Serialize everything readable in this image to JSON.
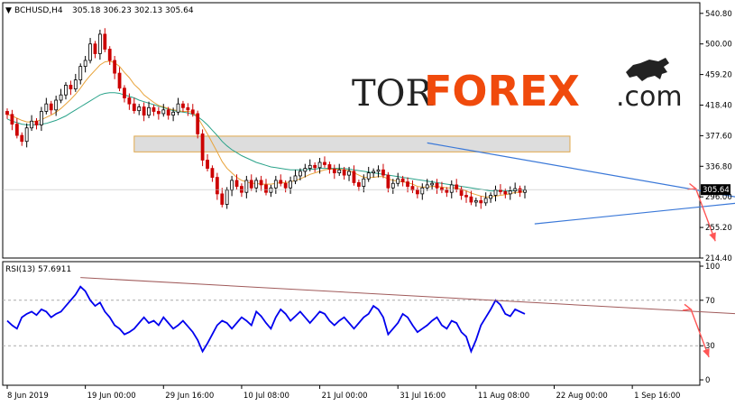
{
  "header": {
    "symbol": "BCHUSD,H4",
    "ohlc": "305.18 306.23 302.13 305.64",
    "rsi_label": "RSI(13) 57.6911"
  },
  "logo": {
    "part1": "TOR",
    "part2": "FOREX",
    "part3": ".com"
  },
  "colors": {
    "bull_candle": "#000000",
    "bear_candle": "#cc0000",
    "ma_fast": "#e8a33a",
    "ma_slow": "#2aa38a",
    "trend": "#3a78d8",
    "arrow": "#ff5555",
    "rsi_line": "#0000ee",
    "rsi_trend": "#a05a5a",
    "zone_fill": "#dddddd",
    "zone_border": "#e0a84c",
    "logo_orange": "#f04a0c"
  },
  "chart_data": [
    {
      "type": "candlestick",
      "title": "BCHUSD,H4",
      "ylim": [
        214.4,
        555
      ],
      "price_labels": [
        "540.80",
        "500.00",
        "459.20",
        "418.40",
        "377.60",
        "336.80",
        "296.00",
        "255.20",
        "214.40"
      ],
      "current_price": "305.64",
      "x_labels": [
        "8 Jun 2019",
        "19 Jun 00:00",
        "29 Jun 16:00",
        "10 Jul 08:00",
        "21 Jul 00:00",
        "31 Jul 16:00",
        "11 Aug 08:00",
        "22 Aug 00:00",
        "1 Sep 16:00"
      ],
      "x_label_index": [
        0,
        16,
        32,
        48,
        64,
        80,
        96,
        112,
        128
      ],
      "price": [
        406,
        393,
        378,
        370,
        388,
        397,
        392,
        410,
        420,
        412,
        425,
        432,
        445,
        440,
        452,
        470,
        478,
        500,
        487,
        513,
        493,
        478,
        461,
        441,
        428,
        420,
        411,
        416,
        405,
        415,
        410,
        407,
        412,
        405,
        409,
        420,
        415,
        412,
        407,
        380,
        345,
        334,
        322,
        300,
        286,
        305,
        318,
        310,
        302,
        318,
        308,
        318,
        312,
        302,
        308,
        318,
        314,
        308,
        317,
        324,
        330,
        334,
        338,
        335,
        342,
        339,
        333,
        328,
        332,
        325,
        330,
        315,
        310,
        320,
        328,
        330,
        332,
        325,
        308,
        314,
        320,
        316,
        310,
        305,
        300,
        308,
        312,
        314,
        308,
        305,
        302,
        312,
        306,
        298,
        296,
        289,
        291,
        288,
        294,
        298,
        305,
        303,
        300,
        304,
        307,
        302,
        305
      ],
      "zone": {
        "from": 377,
        "to": 356
      },
      "ma_fast": [
        406,
        404,
        401,
        398,
        396,
        396,
        397,
        399,
        402,
        405,
        409,
        414,
        420,
        426,
        433,
        441,
        450,
        458,
        465,
        472,
        476,
        477,
        475,
        470,
        462,
        455,
        446,
        440,
        432,
        427,
        422,
        418,
        416,
        414,
        412,
        411,
        410,
        410,
        409,
        402,
        391,
        380,
        368,
        356,
        343,
        334,
        328,
        322,
        318,
        316,
        314,
        314,
        313,
        313,
        313,
        314,
        315,
        315,
        316,
        318,
        320,
        323,
        326,
        328,
        330,
        332,
        333,
        333,
        333,
        332,
        331,
        328,
        325,
        322,
        322,
        322,
        323,
        323,
        320,
        318,
        317,
        316,
        315,
        313,
        310,
        309,
        309,
        310,
        310,
        309,
        308,
        308,
        308,
        306,
        304,
        301,
        299,
        297,
        296,
        296,
        297,
        298,
        299,
        300,
        302,
        302,
        303
      ],
      "ma_slow": [
        400,
        397,
        395,
        393,
        392,
        392,
        392,
        393,
        394,
        396,
        398,
        401,
        404,
        408,
        412,
        416,
        420,
        424,
        428,
        432,
        434,
        435,
        435,
        434,
        432,
        430,
        428,
        425,
        423,
        421,
        419,
        417,
        415,
        413,
        411,
        410,
        409,
        408,
        406,
        403,
        398,
        392,
        385,
        378,
        370,
        364,
        359,
        355,
        351,
        348,
        345,
        342,
        340,
        338,
        336,
        335,
        334,
        333,
        332,
        332,
        332,
        332,
        333,
        333,
        334,
        334,
        334,
        334,
        334,
        334,
        333,
        332,
        331,
        330,
        329,
        328,
        327,
        326,
        325,
        324,
        323,
        322,
        321,
        320,
        319,
        318,
        317,
        316,
        315,
        314,
        313,
        312,
        311,
        310,
        309,
        308,
        307,
        306,
        305,
        304,
        304,
        304,
        304,
        304,
        305,
        305,
        305
      ],
      "trend_upper": [
        [
          86,
          368
        ],
        [
          150,
          295
        ]
      ],
      "trend_lower": [
        [
          108,
          260
        ],
        [
          150,
          288
        ]
      ],
      "arrow": {
        "from": [
          141,
          307
        ],
        "to": [
          145,
          237
        ]
      }
    },
    {
      "type": "line",
      "title": "RSI(13) 57.6911",
      "ylim": [
        0,
        100
      ],
      "levels": [
        "100",
        "70",
        "30",
        "0"
      ],
      "rsi": [
        52,
        48,
        45,
        55,
        58,
        60,
        57,
        62,
        60,
        55,
        58,
        60,
        65,
        70,
        75,
        82,
        78,
        70,
        65,
        68,
        60,
        55,
        48,
        45,
        40,
        42,
        45,
        50,
        55,
        50,
        52,
        48,
        55,
        50,
        45,
        48,
        52,
        47,
        42,
        35,
        25,
        32,
        40,
        48,
        52,
        50,
        45,
        50,
        55,
        52,
        48,
        60,
        56,
        50,
        45,
        55,
        62,
        58,
        52,
        56,
        60,
        55,
        50,
        55,
        60,
        58,
        52,
        48,
        52,
        55,
        50,
        45,
        50,
        55,
        58,
        65,
        62,
        55,
        40,
        45,
        50,
        58,
        55,
        48,
        42,
        45,
        48,
        52,
        55,
        48,
        45,
        52,
        50,
        42,
        38,
        25,
        35,
        48,
        55,
        62,
        70,
        66,
        58,
        56,
        62,
        60,
        58
      ],
      "trend": [
        [
          15,
          90
        ],
        [
          150,
          58
        ]
      ],
      "arrow": {
        "from": [
          140,
          62
        ],
        "to": [
          140,
          20
        ]
      }
    }
  ]
}
